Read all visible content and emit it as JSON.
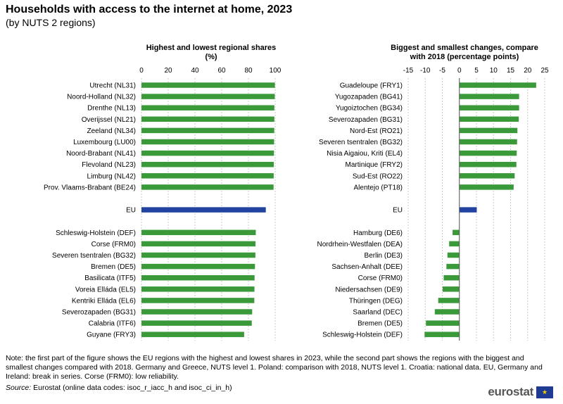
{
  "title": "Households with access to the internet at home, 2023",
  "subtitle": "(by NUTS 2 regions)",
  "chart_data": [
    {
      "type": "bar",
      "orientation": "horizontal",
      "title": "Highest and lowest regional shares (%)",
      "title_lines": [
        "Highest and lowest regional shares",
        "(%)"
      ],
      "xlim": [
        0,
        100
      ],
      "ticks": [
        0,
        20,
        40,
        60,
        80,
        100
      ],
      "grid": true,
      "categories": [
        "Utrecht (NL31)",
        "Noord-Holland (NL32)",
        "Drenthe (NL13)",
        "Overijssel (NL21)",
        "Zeeland (NL34)",
        "Luxembourg (LU00)",
        "Noord-Brabant (NL41)",
        "Flevoland (NL23)",
        "Limburg (NL42)",
        "Prov. Vlaams-Brabant (BE24)",
        "",
        "EU",
        "",
        "Schleswig-Holstein (DEF)",
        "Corse (FRM0)",
        "Severen tsentralen (BG32)",
        "Bremen (DE5)",
        "Basilicata (ITF5)",
        "Voreia Elláda (EL5)",
        "Kentriki Elláda (EL6)",
        "Severozapaden (BG31)",
        "Calabria (ITF6)",
        "Guyane (FRY3)"
      ],
      "values": [
        99.8,
        99.7,
        99.4,
        99.4,
        99.3,
        99.2,
        99.1,
        99.0,
        98.9,
        98.8,
        null,
        93.0,
        null,
        85.5,
        85.3,
        85.2,
        84.9,
        84.6,
        84.5,
        84.4,
        82.8,
        82.5,
        76.8
      ],
      "highlight": "EU"
    },
    {
      "type": "bar",
      "orientation": "horizontal",
      "title": "Biggest and smallest changes, compare with 2018 (percentage points)",
      "title_lines": [
        "Biggest and smallest changes, compare",
        "with 2018 (percentage points)"
      ],
      "xlim": [
        -15,
        25
      ],
      "ticks": [
        -15,
        -10,
        -5,
        0,
        5,
        10,
        15,
        20,
        25
      ],
      "grid": true,
      "categories": [
        "Guadeloupe (FRY1)",
        "Yugozapaden (BG41)",
        "Yugoiztochen (BG34)",
        "Severozapaden (BG31)",
        "Nord-Est (RO21)",
        "Severen tsentralen (BG32)",
        "Nisia Aigaiou, Kriti (EL4)",
        "Martinique  (FRY2)",
        "Sud-Est (RO22)",
        "Alentejo (PT18)",
        "",
        "EU",
        "",
        "Hamburg (DE6)",
        "Nordrhein-Westfalen (DEA)",
        "Berlin (DE3)",
        "Sachsen-Anhalt (DEE)",
        "Corse (FRM0)",
        "Niedersachsen (DE9)",
        "Thüringen (DEG)",
        "Saarland (DEC)",
        "Bremen (DE5)",
        "Schleswig-Holstein (DEF)"
      ],
      "values": [
        22.5,
        17.5,
        17.5,
        17.4,
        17.0,
        16.9,
        16.8,
        16.7,
        16.2,
        15.9,
        null,
        5.1,
        null,
        -2.0,
        -3.0,
        -3.5,
        -3.8,
        -4.6,
        -4.9,
        -6.2,
        -7.2,
        -9.8,
        -10.2
      ],
      "highlight": "EU"
    }
  ],
  "note": "Note: the first part of the figure shows the EU regions with the highest and lowest shares in 2023, while the second part shows the regions with the biggest and smallest changes compared with 2018. Germany and Greece, NUTS level 1. Poland: comparison with 2018, NUTS level 1. Croatia: national data. EU, Germany and Ireland:  break in series. Corse (FRM0): low reliability.",
  "source_label": "Source:",
  "source_text": " Eurostat (online data codes: isoc_r_iacc_h and isoc_ci_in_h)",
  "logo_text": "eurostat",
  "colors": {
    "bar": "#3a9a3a",
    "highlight": "#2244a0",
    "grid": "#c8c8c8"
  }
}
